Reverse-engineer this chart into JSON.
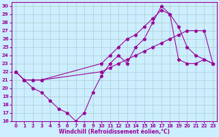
{
  "xlabel": "Windchill (Refroidissement éolien,°C)",
  "background_color": "#cceeff",
  "line_color": "#990099",
  "grid_color": "#aacccc",
  "xlim": [
    -0.5,
    23.5
  ],
  "ylim": [
    16,
    30.5
  ],
  "xticks": [
    0,
    1,
    2,
    3,
    4,
    5,
    6,
    7,
    8,
    9,
    10,
    11,
    12,
    13,
    14,
    15,
    16,
    17,
    18,
    19,
    20,
    21,
    22,
    23
  ],
  "yticks": [
    16,
    17,
    18,
    19,
    20,
    21,
    22,
    23,
    24,
    25,
    26,
    27,
    28,
    29,
    30
  ],
  "line1_x": [
    0,
    1,
    2,
    3,
    4,
    5,
    6,
    7,
    8,
    9,
    10,
    11,
    12,
    13,
    14,
    15,
    16,
    17,
    18,
    19,
    20,
    21,
    22,
    23
  ],
  "line1_y": [
    22,
    21,
    20,
    19.5,
    18.5,
    17.5,
    17,
    16,
    17,
    19.5,
    21.5,
    23,
    24,
    23,
    25,
    26,
    28,
    30,
    29,
    27.5,
    25,
    24,
    23.5,
    23
  ],
  "line2_x": [
    0,
    1,
    2,
    3,
    10,
    11,
    12,
    13,
    14,
    15,
    16,
    17,
    18,
    19,
    20,
    21,
    22,
    23
  ],
  "line2_y": [
    22,
    21,
    21,
    21,
    22,
    22.5,
    23,
    23.5,
    24,
    24.5,
    25,
    25.5,
    26,
    26.5,
    27,
    27,
    27,
    23
  ],
  "line3_x": [
    0,
    1,
    2,
    3,
    10,
    11,
    12,
    13,
    14,
    15,
    16,
    17,
    18,
    19,
    20,
    21,
    22,
    23
  ],
  "line3_y": [
    22,
    21,
    21,
    21,
    23,
    24,
    25,
    26,
    26.5,
    27.5,
    28.5,
    29.5,
    29,
    23.5,
    23,
    23,
    23.5,
    23
  ]
}
